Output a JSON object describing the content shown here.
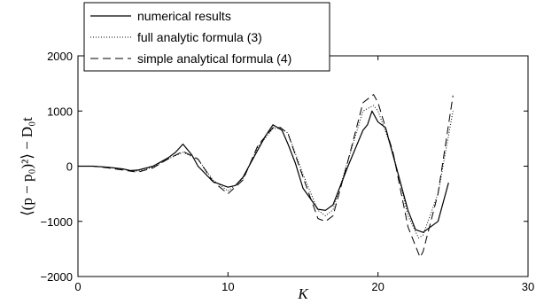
{
  "chart_data": {
    "type": "line",
    "xlabel": "K",
    "ylabel": "⟨(p − p₀)²⟩ − D₀t",
    "xlim": [
      0,
      30
    ],
    "ylim": [
      -2000,
      2000
    ],
    "xticks": [
      "0",
      "10",
      "20",
      "30"
    ],
    "yticks": [
      "−2000",
      "−1000",
      "0",
      "1000",
      "2000"
    ],
    "grid": false,
    "legend_position": "top-left",
    "series": [
      {
        "name": "numerical results",
        "style": "solid",
        "x": [
          0,
          1,
          2,
          3,
          3.5,
          4,
          5,
          6,
          6.5,
          7,
          7.3,
          7.6,
          8,
          9,
          10,
          10.5,
          11,
          12,
          12.5,
          13,
          13.3,
          13.6,
          14,
          14.5,
          15,
          16,
          16.5,
          17,
          18,
          19,
          19.3,
          19.6,
          20,
          20.5,
          21,
          22,
          22.5,
          23,
          24,
          24.7
        ],
        "y": [
          0,
          0,
          -20,
          -50,
          -80,
          -70,
          0,
          150,
          250,
          400,
          300,
          200,
          0,
          -280,
          -380,
          -350,
          -200,
          300,
          550,
          750,
          700,
          650,
          400,
          50,
          -400,
          -780,
          -800,
          -700,
          0,
          650,
          750,
          1000,
          800,
          700,
          200,
          -800,
          -1150,
          -1200,
          -1000,
          -300
        ]
      },
      {
        "name": "full analytic formula (3)",
        "style": "dotted",
        "x": [
          0,
          1,
          2,
          3,
          4,
          5,
          6,
          7,
          8,
          9,
          10,
          11,
          12,
          13,
          13.5,
          14,
          15,
          16,
          16.5,
          17,
          18,
          19,
          19.7,
          20,
          21,
          22,
          22.7,
          23,
          24,
          25
        ],
        "y": [
          0,
          0,
          -20,
          -60,
          -90,
          -20,
          130,
          250,
          120,
          -250,
          -450,
          -230,
          350,
          680,
          690,
          600,
          -150,
          -800,
          -900,
          -790,
          100,
          1000,
          1100,
          1000,
          250,
          -900,
          -1300,
          -1250,
          -500,
          1000
        ]
      },
      {
        "name": "simple analytical formula (4)",
        "style": "dashed",
        "x": [
          0,
          1,
          2,
          3,
          4,
          5,
          6,
          7,
          8,
          9,
          10,
          11,
          12,
          13,
          13.5,
          14,
          15,
          16,
          16.5,
          17,
          18,
          19,
          19.7,
          20,
          21,
          22,
          22.8,
          23,
          24,
          25
        ],
        "y": [
          0,
          0,
          -30,
          -70,
          -110,
          -30,
          130,
          270,
          130,
          -280,
          -500,
          -250,
          380,
          700,
          700,
          590,
          -200,
          -950,
          -1000,
          -900,
          100,
          1150,
          1300,
          1150,
          250,
          -1100,
          -1650,
          -1550,
          -500,
          1280
        ]
      }
    ]
  }
}
